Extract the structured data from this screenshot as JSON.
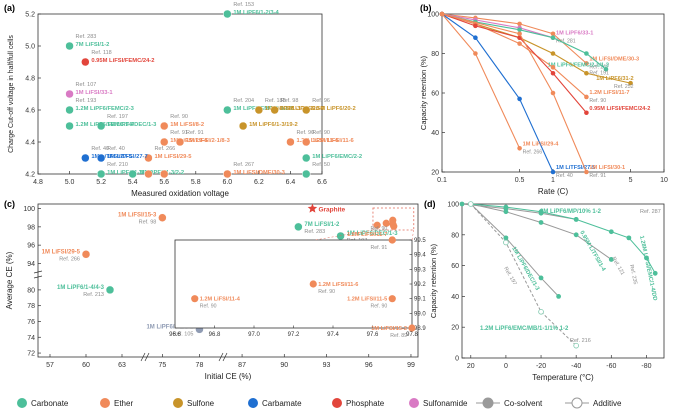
{
  "chart_data": [
    {
      "panel": "(a)",
      "type": "scatter",
      "xlabel": "Measured oxidation voltage",
      "ylabel": "Charge Cut-off voltage in half/full cells",
      "xlim": [
        4.8,
        6.6
      ],
      "ylim": [
        4.2,
        5.2
      ],
      "xticks": [
        "4.8",
        "5.0",
        "5.2",
        "5.4",
        "5.6",
        "5.8",
        "6.0",
        "6.2",
        "6.4",
        "6.6"
      ],
      "yticks": [
        "4.2",
        "4.4",
        "4.6",
        "4.8",
        "5.0",
        "5.2"
      ],
      "points": [
        {
          "x": 5.0,
          "y": 5.0,
          "cat": "carbonate",
          "label": "7M LiFSI/1-2",
          "ref": "Ref. 283"
        },
        {
          "x": 5.1,
          "y": 4.9,
          "cat": "phosphate",
          "label": "0.95M LiFSI/FEMC/24-2",
          "ref": "Ref. 118"
        },
        {
          "x": 5.0,
          "y": 4.7,
          "cat": "sulfonamide",
          "label": "1M LiFSI/33-1",
          "ref": "Ref. 107"
        },
        {
          "x": 5.0,
          "y": 4.6,
          "cat": "carbonate",
          "label": "1.2M LiPF6/FEMC/2-3",
          "ref": "Ref. 193"
        },
        {
          "x": 5.2,
          "y": 4.5,
          "cat": "carbonate",
          "label": "1M LiPF6/DEC/1-3",
          "ref": "Ref. 197"
        },
        {
          "x": 5.0,
          "y": 4.5,
          "cat": "carbonate",
          "label": "1.2M LiPF6/FEMC/2-4",
          "ref": ""
        },
        {
          "x": 6.0,
          "y": 5.2,
          "cat": "carbonate",
          "label": "1M LiPF6/1-2/3-4",
          "ref": "Ref. 153"
        },
        {
          "x": 6.0,
          "y": 4.6,
          "cat": "carbonate",
          "label": "1M LiPF6/EMC/2-3/1-2",
          "ref": "Ref. 204"
        },
        {
          "x": 6.2,
          "y": 4.6,
          "cat": "sulfone",
          "label": "1M LiPF6/1-3/20-2",
          "ref": "Ref. 188"
        },
        {
          "x": 6.3,
          "y": 4.6,
          "cat": "sulfone",
          "label": "0.5M LiPF6/20-4",
          "ref": "Ref. 98"
        },
        {
          "x": 6.5,
          "y": 4.6,
          "cat": "sulfone",
          "label": "0.5M LiPF6/20-2",
          "ref": "Ref. 96"
        },
        {
          "x": 6.1,
          "y": 4.5,
          "cat": "sulfone",
          "label": "1M LiPF6/1-3/19-2",
          "ref": ""
        },
        {
          "x": 5.6,
          "y": 4.5,
          "cat": "ether",
          "label": "1M LiFSI/8-2",
          "ref": "Ref. 90"
        },
        {
          "x": 5.6,
          "y": 4.4,
          "cat": "ether",
          "label": "1M LiFSI/29-4",
          "ref": "Ref. 91"
        },
        {
          "x": 5.7,
          "y": 4.4,
          "cat": "ether",
          "label": "1M LiFSI/2-1/8-3",
          "ref": "Ref. 91"
        },
        {
          "x": 5.5,
          "y": 4.3,
          "cat": "ether",
          "label": "1M LiFSI/29-5",
          "ref": "Ref. 266"
        },
        {
          "x": 5.1,
          "y": 4.3,
          "cat": "carbamate",
          "label": "1M LiTFSI/27-5",
          "ref": "Ref. 40"
        },
        {
          "x": 5.2,
          "y": 4.3,
          "cat": "carbamate",
          "label": "1M LiTFSI/27-7",
          "ref": "Ref. 40"
        },
        {
          "x": 5.2,
          "y": 4.2,
          "cat": "carbonate",
          "label": "1M LiPF6/1-3/2-2",
          "ref": "Ref. 210"
        },
        {
          "x": 5.4,
          "y": 4.2,
          "cat": "carbonate",
          "label": "1M LiPF6/1-3/2-2",
          "ref": ""
        },
        {
          "x": 5.5,
          "y": 4.2,
          "cat": "ether",
          "label": "",
          "ref": ""
        },
        {
          "x": 5.6,
          "y": 4.2,
          "cat": "ether",
          "label": "",
          "ref": ""
        },
        {
          "x": 6.0,
          "y": 4.2,
          "cat": "ether",
          "label": "1M LiFSI/DME/30-3",
          "ref": "Ref. 267"
        },
        {
          "x": 6.4,
          "y": 4.4,
          "cat": "ether",
          "label": "1.2M LiFSI/11-4",
          "ref": "Ref. 90"
        },
        {
          "x": 6.5,
          "y": 4.4,
          "cat": "ether",
          "label": "1.2M LiFSI/11-6",
          "ref": "Ref. 90"
        },
        {
          "x": 6.5,
          "y": 4.3,
          "cat": "carbonate",
          "label": "1M LiPF6/EMC/2-2",
          "ref": ""
        },
        {
          "x": 6.5,
          "y": 4.2,
          "cat": "carbonate",
          "label": "",
          "ref": "Ref. 50"
        }
      ]
    },
    {
      "panel": "(b)",
      "type": "line",
      "xscale": "log",
      "xlabel": "Rate (C)",
      "ylabel": "Capacity retention (%)",
      "xlim": [
        0.1,
        10
      ],
      "ylim": [
        20,
        100
      ],
      "xticks": [
        "0.1",
        "0.5",
        "1",
        "5",
        "10"
      ],
      "yticks": [
        "20",
        "40",
        "60",
        "80",
        "100"
      ],
      "series": [
        {
          "name": "1M LiFSI/DME/30-3",
          "ref": "Ref. 267",
          "cat": "ether",
          "x": [
            0.1,
            0.2,
            0.5,
            1,
            2
          ],
          "values": [
            100,
            98,
            95,
            90,
            75
          ]
        },
        {
          "name": "1M LiPF6/33-1",
          "ref": "Ref. 281",
          "cat": "sulfonamide",
          "x": [
            0.1,
            0.2,
            0.5,
            1
          ],
          "values": [
            100,
            97,
            93,
            88
          ]
        },
        {
          "name": "1M LiPF6/FEMC/2-1/1-2",
          "ref": "Ref. 191",
          "cat": "carbonate",
          "x": [
            0.1,
            0.2,
            0.5,
            1,
            2,
            3
          ],
          "values": [
            100,
            96,
            92,
            88,
            80,
            72
          ]
        },
        {
          "name": "1M LiPF6/31-2",
          "ref": "Ref. 252",
          "cat": "sulfone",
          "x": [
            0.1,
            0.2,
            0.5,
            1,
            2,
            5
          ],
          "values": [
            100,
            95,
            88,
            80,
            70,
            65
          ]
        },
        {
          "name": "1.2M LiFSI/11-7",
          "ref": "Ref. 90",
          "cat": "ether",
          "x": [
            0.1,
            0.2,
            0.5,
            1,
            2
          ],
          "values": [
            100,
            95,
            85,
            73,
            58
          ]
        },
        {
          "name": "0.95M LiFSI/FEMC/24-2",
          "ref": "",
          "cat": "phosphate",
          "x": [
            0.1,
            0.2,
            0.5,
            1,
            2
          ],
          "values": [
            100,
            94,
            88,
            70,
            50
          ]
        },
        {
          "name": "1M LiTFSI/27-5",
          "ref": "Ref. 40",
          "cat": "carbamate",
          "x": [
            0.1,
            0.2,
            0.5,
            1
          ],
          "values": [
            100,
            88,
            57,
            20
          ]
        },
        {
          "name": "1M LiFSI/29-4",
          "ref": "Ref. 266",
          "cat": "ether",
          "x": [
            0.1,
            0.2,
            0.5
          ],
          "values": [
            100,
            80,
            32
          ]
        },
        {
          "name": "1M LiFSI/30-1",
          "ref": "Ref. 91",
          "cat": "ether",
          "x": [
            0.1,
            0.5,
            1,
            2
          ],
          "values": [
            100,
            90,
            60,
            20
          ]
        }
      ]
    },
    {
      "panel": "(c)",
      "type": "scatter",
      "xlabel": "Initial CE (%)",
      "ylabel": "Average CE (%)",
      "xticks": [
        "57",
        "60",
        "63",
        "75",
        "78",
        "87",
        "90",
        "93",
        "96",
        "99"
      ],
      "yticks": [
        "72",
        "74",
        "76",
        "78",
        "80",
        "94",
        "96",
        "98",
        "100"
      ],
      "inset": {
        "xlim": [
          96.6,
          97.8
        ],
        "ylim": [
          98.9,
          99.5
        ],
        "xticks": [
          "96.6",
          "96.8",
          "97.0",
          "97.2",
          "97.4",
          "97.6",
          "97.8"
        ],
        "yticks": [
          "98.9",
          "99.0",
          "99.1",
          "99.2",
          "99.3",
          "99.4",
          "99.5"
        ],
        "points": [
          {
            "x": 97.7,
            "y": 99.5,
            "label": "1.2M LiFSI/11-7",
            "ref": "Ref. 90"
          },
          {
            "x": 97.7,
            "y": 99.5,
            "label": "",
            "ref": "Ref. 91"
          },
          {
            "x": 97.3,
            "y": 99.2,
            "label": "1.2M LiFSI/11-6",
            "ref": "Ref. 90"
          },
          {
            "x": 96.7,
            "y": 99.1,
            "label": "1.2M LiFSI/11-4",
            "ref": "Ref. 90"
          },
          {
            "x": 97.7,
            "y": 99.1,
            "label": "1.2M LiFSI/11-5",
            "ref": "Ref. 90"
          },
          {
            "x": 97.8,
            "y": 98.9,
            "label": "1M LiFSI/15-2",
            "ref": "Ref. 89"
          }
        ]
      },
      "points": [
        {
          "x": 75,
          "y": 99,
          "cat": "ether",
          "label": "1M LiFSI/15-3",
          "ref": "Ref. 98"
        },
        {
          "x": 92,
          "y": 100,
          "cat": "graphite",
          "label": "Graphite",
          "ref": ""
        },
        {
          "x": 91,
          "y": 98,
          "cat": "carbonate",
          "label": "7M LiFSI/1-2",
          "ref": "Ref. 283"
        },
        {
          "x": 94,
          "y": 97,
          "cat": "carbonate",
          "label": "1M LiPF6/DEC/1-3",
          "ref": "Ref. 197"
        },
        {
          "x": 60,
          "y": 95,
          "cat": "ether",
          "label": "1M LiFSI/29-5",
          "ref": "Ref. 266"
        },
        {
          "x": 62,
          "y": 80,
          "cat": "carbonate",
          "label": "1M LiPF6/1-4/4-3",
          "ref": "Ref. 213"
        },
        {
          "x": 78,
          "y": 75,
          "cat": "co-solvent",
          "label": "1M LiPF6/6-1/8-2",
          "ref": "Ref. 105"
        }
      ]
    },
    {
      "panel": "(d)",
      "type": "line",
      "xlabel": "Temperature (°C)",
      "ylabel": "Capacity retention (%)",
      "xlim": [
        25,
        -90
      ],
      "ylim": [
        0,
        100
      ],
      "xticks": [
        "20",
        "0",
        "-20",
        "-40",
        "-60",
        "-80"
      ],
      "yticks": [
        "0",
        "20",
        "40",
        "60",
        "80",
        "100"
      ],
      "series": [
        {
          "name": "2M LiPF6/MP/10% 1-2",
          "ref": "Ref. 287",
          "cat": "co-solvent",
          "x": [
            25,
            0,
            -20,
            -40
          ],
          "values": [
            100,
            97,
            94,
            90
          ]
        },
        {
          "name": "0.95M LiTFSI/1-4",
          "ref": "Ref. 121",
          "cat": "co-solvent",
          "x": [
            20,
            0,
            -20,
            -40,
            -60
          ],
          "values": [
            100,
            95,
            88,
            80,
            64
          ]
        },
        {
          "name": "1.28M LiFSI/EMC/1-4/DD",
          "ref": "Ref. 235",
          "cat": "carbonate",
          "x": [
            20,
            0,
            -20,
            -40,
            -60,
            -70,
            -80,
            -85
          ],
          "values": [
            100,
            98,
            95,
            90,
            82,
            78,
            65,
            55
          ]
        },
        {
          "name": "1M LiPF6/DEC/1-3",
          "ref": "Ref. 197",
          "cat": "co-solvent",
          "x": [
            20,
            0,
            -20,
            -30
          ],
          "values": [
            100,
            78,
            52,
            40
          ]
        },
        {
          "name": "1.2M LiPF6/EMC/MB/1-1/1% 1-2",
          "ref": "Ref. 216",
          "cat": "additive",
          "x": [
            20,
            0,
            -20,
            -40
          ],
          "values": [
            100,
            75,
            30,
            8
          ]
        }
      ]
    }
  ],
  "legend": [
    {
      "label": "Carbonate",
      "color": "#4dbf9a",
      "kind": "filled"
    },
    {
      "label": "Ether",
      "color": "#f08a5a",
      "kind": "filled"
    },
    {
      "label": "Sulfone",
      "color": "#c8942a",
      "kind": "filled"
    },
    {
      "label": "Carbamate",
      "color": "#1f6fd1",
      "kind": "filled"
    },
    {
      "label": "Phosphate",
      "color": "#e2453b",
      "kind": "filled"
    },
    {
      "label": "Sulfonamide",
      "color": "#d97ac4",
      "kind": "filled"
    },
    {
      "label": "Co-solvent",
      "color": "#9a9a9a",
      "kind": "line-filled"
    },
    {
      "label": "Additive",
      "color": "#9a9a9a",
      "kind": "line-open"
    }
  ],
  "colors": {
    "carbonate": "#4dbf9a",
    "ether": "#f08a5a",
    "sulfone": "#c8942a",
    "carbamate": "#1f6fd1",
    "phosphate": "#e2453b",
    "sulfonamide": "#d97ac4",
    "co-solvent": "#9a9a9a",
    "additive": "#9a9a9a",
    "graphite": "#e2453b",
    "ref_text": "#8c8c8c",
    "axis": "#333333"
  }
}
